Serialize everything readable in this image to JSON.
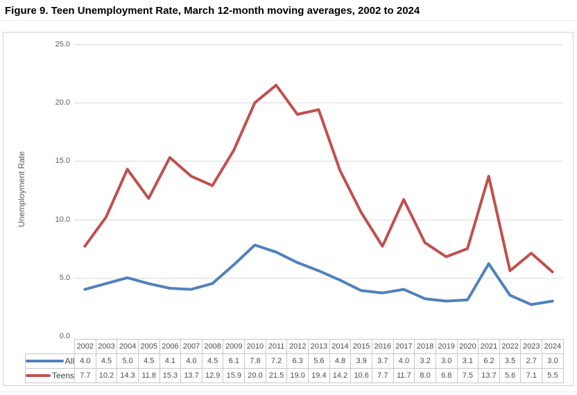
{
  "title": "Figure 9. Teen Unemployment Rate, March 12-month moving averages, 2002 to 2024",
  "y_axis": {
    "label": "Unemployment Rate",
    "ticks": [
      "25.0",
      "20.0",
      "15.0",
      "10.0",
      "5.0",
      "0.0"
    ]
  },
  "colors": {
    "all_series": "#4F81BD",
    "teens_series": "#C0504D",
    "gridline": "#D9D9D9",
    "table_border": "#C6C6C6"
  },
  "chart_data": {
    "type": "line",
    "title": "Figure 9. Teen Unemployment Rate, March 12-month moving averages, 2002 to 2024",
    "xlabel": "",
    "ylabel": "Unemployment Rate",
    "ylim": [
      0,
      25
    ],
    "grid": true,
    "legend_position": "data-table-left",
    "categories": [
      2002,
      2003,
      2004,
      2005,
      2006,
      2007,
      2008,
      2009,
      2010,
      2011,
      2012,
      2013,
      2014,
      2015,
      2016,
      2017,
      2018,
      2019,
      2020,
      2021,
      2022,
      2023,
      2024
    ],
    "series": [
      {
        "name": "All",
        "color": "#4F81BD",
        "values": [
          4.0,
          4.5,
          5.0,
          4.5,
          4.1,
          4.0,
          4.5,
          6.1,
          7.8,
          7.2,
          6.3,
          5.6,
          4.8,
          3.9,
          3.7,
          4.0,
          3.2,
          3.0,
          3.1,
          6.2,
          3.5,
          2.7,
          3.0
        ]
      },
      {
        "name": "Teens",
        "color": "#C0504D",
        "values": [
          7.7,
          10.2,
          14.3,
          11.8,
          15.3,
          13.7,
          12.9,
          15.9,
          20.0,
          21.5,
          19.0,
          19.4,
          14.2,
          10.6,
          7.7,
          11.7,
          8.0,
          6.8,
          7.5,
          13.7,
          5.6,
          7.1,
          5.5
        ]
      }
    ]
  }
}
